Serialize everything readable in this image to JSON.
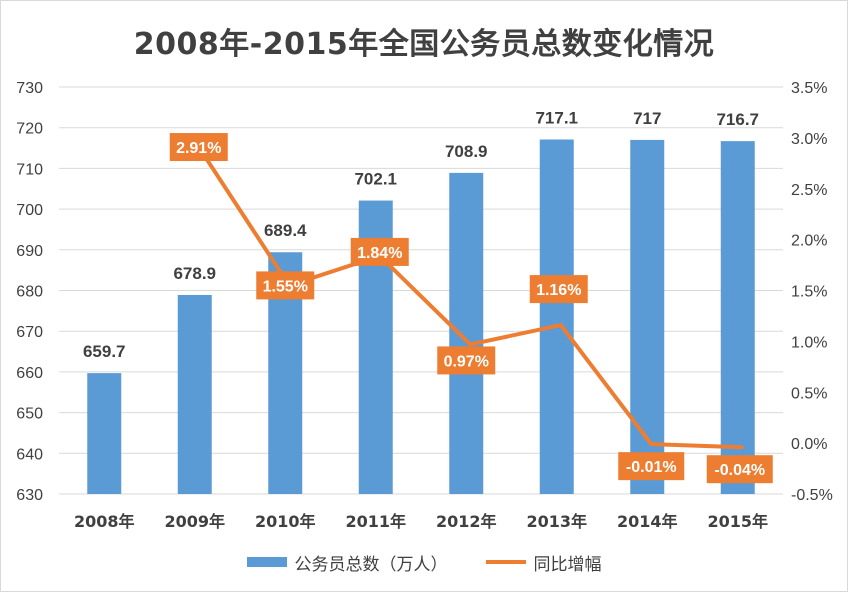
{
  "chart_data": {
    "type": "bar",
    "title": "2008年-2015年全国公务员总数变化情况",
    "categories": [
      "2008年",
      "2009年",
      "2010年",
      "2011年",
      "2012年",
      "2013年",
      "2014年",
      "2015年"
    ],
    "series": [
      {
        "name": "公务员总数（万人）",
        "type": "bar",
        "axis": "left",
        "values": [
          659.7,
          678.9,
          689.4,
          702.1,
          708.9,
          717.1,
          717,
          716.7
        ],
        "labels": [
          "659.7",
          "678.9",
          "689.4",
          "702.1",
          "708.9",
          "717.1",
          "717",
          "716.7"
        ]
      },
      {
        "name": "同比增幅",
        "type": "line",
        "axis": "right",
        "values": [
          null,
          2.91,
          1.55,
          1.84,
          0.97,
          1.16,
          -0.01,
          -0.04
        ],
        "labels": [
          null,
          "2.91%",
          "1.55%",
          "1.84%",
          "0.97%",
          "1.16%",
          "-0.01%",
          "-0.04%"
        ]
      }
    ],
    "y_left": {
      "range": [
        630,
        730
      ],
      "ticks": [
        {
          "value": 630,
          "label": "630"
        },
        {
          "value": 640,
          "label": "640"
        },
        {
          "value": 650,
          "label": "650"
        },
        {
          "value": 660,
          "label": "660"
        },
        {
          "value": 670,
          "label": "670"
        },
        {
          "value": 680,
          "label": "680"
        },
        {
          "value": 690,
          "label": "690"
        },
        {
          "value": 700,
          "label": "700"
        },
        {
          "value": 710,
          "label": "710"
        },
        {
          "value": 720,
          "label": "720"
        },
        {
          "value": 730,
          "label": "730"
        }
      ]
    },
    "y_right": {
      "range": [
        -0.5,
        3.5
      ],
      "ticks": [
        {
          "value": -0.5,
          "label": "-0.5%"
        },
        {
          "value": 0,
          "label": "0.0%"
        },
        {
          "value": 0.5,
          "label": "0.5%"
        },
        {
          "value": 1.0,
          "label": "1.0%"
        },
        {
          "value": 1.5,
          "label": "1.5%"
        },
        {
          "value": 2.0,
          "label": "2.0%"
        },
        {
          "value": 2.5,
          "label": "2.5%"
        },
        {
          "value": 3.0,
          "label": "3.0%"
        },
        {
          "value": 3.5,
          "label": "3.5%"
        }
      ]
    },
    "grid": true,
    "legend": "bottom",
    "colors": {
      "bar": "#5b9bd5",
      "line": "#ed7d31",
      "grid": "#d9d9d9",
      "text": "#404040"
    }
  }
}
